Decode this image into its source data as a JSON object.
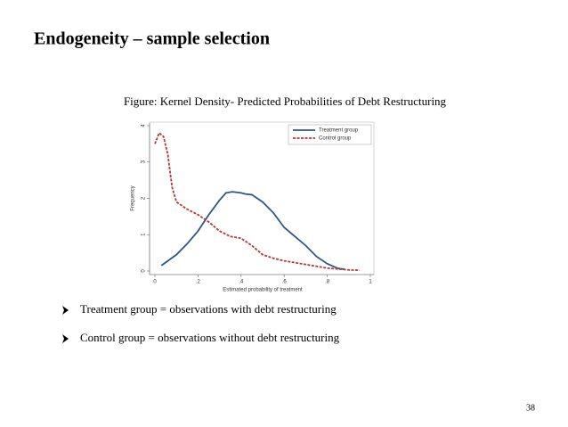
{
  "slide": {
    "title": "Endogeneity – sample selection",
    "caption": "Figure: Kernel Density- Predicted Probabilities of Debt Restructuring",
    "bullets": [
      "Treatment group = observations with debt restructuring",
      "Control group = observations without debt restructuring"
    ],
    "page_number": "38"
  },
  "chart_data": {
    "type": "line",
    "xlabel": "Estimated probability of treatment",
    "ylabel": "Frequency",
    "xlim": [
      0,
      1
    ],
    "ylim": [
      0,
      4
    ],
    "xticks": [
      0,
      {
        "value": 0.2,
        "label": ".2"
      },
      {
        "value": 0.4,
        "label": ".4"
      },
      {
        "value": 0.6,
        "label": ".6"
      },
      {
        "value": 0.8,
        "label": ".8"
      },
      1
    ],
    "yticks": [
      0,
      1,
      2,
      3,
      4
    ],
    "legend": "top-right",
    "series": [
      {
        "name": "Treatment group",
        "color": "#2f5684",
        "dash": false,
        "x": [
          0.03,
          0.1,
          0.15,
          0.2,
          0.25,
          0.3,
          0.33,
          0.36,
          0.4,
          0.42,
          0.45,
          0.5,
          0.55,
          0.6,
          0.65,
          0.7,
          0.75,
          0.8,
          0.85,
          0.88
        ],
        "values": [
          0.15,
          0.45,
          0.75,
          1.1,
          1.55,
          1.95,
          2.15,
          2.18,
          2.15,
          2.12,
          2.1,
          1.9,
          1.6,
          1.2,
          0.95,
          0.7,
          0.4,
          0.2,
          0.07,
          0.05
        ]
      },
      {
        "name": "Control group",
        "color": "#b03a3a",
        "dash": true,
        "x": [
          0,
          0.02,
          0.04,
          0.06,
          0.08,
          0.1,
          0.15,
          0.2,
          0.25,
          0.3,
          0.35,
          0.4,
          0.45,
          0.5,
          0.55,
          0.6,
          0.7,
          0.8,
          0.9,
          0.95
        ],
        "values": [
          3.5,
          3.8,
          3.7,
          3.2,
          2.3,
          1.9,
          1.7,
          1.55,
          1.35,
          1.1,
          0.95,
          0.9,
          0.7,
          0.45,
          0.35,
          0.28,
          0.18,
          0.08,
          0.03,
          0.02
        ]
      }
    ]
  }
}
